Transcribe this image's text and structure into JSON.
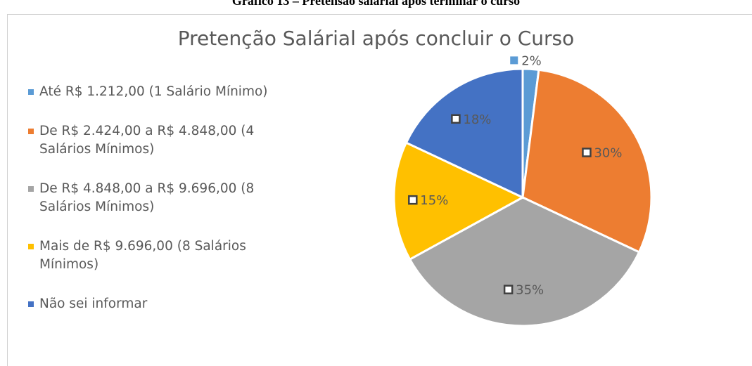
{
  "caption": "Gráfico 13 – Pretensão salarial após terminar o curso",
  "chart_data": {
    "type": "pie",
    "title": "Pretenção Salárial após concluir o Curso",
    "categories": [
      "Até R$ 1.212,00 (1 Salário Mínimo)",
      "De R$ 2.424,00 a R$ 4.848,00 (4 Salários Mínimos)",
      "De R$ 4.848,00 a R$ 9.696,00 (8 Salários Mínimos)",
      "Mais de R$ 9.696,00 (8 Salários Mínimos)",
      "Não sei informar"
    ],
    "values": [
      2,
      30,
      35,
      15,
      18
    ],
    "value_labels": [
      "2%",
      "30%",
      "35%",
      "15%",
      "18%"
    ],
    "colors": [
      "#5b9bd5",
      "#ed7d31",
      "#a5a5a5",
      "#ffc000",
      "#4472c4"
    ],
    "legend": "left"
  }
}
